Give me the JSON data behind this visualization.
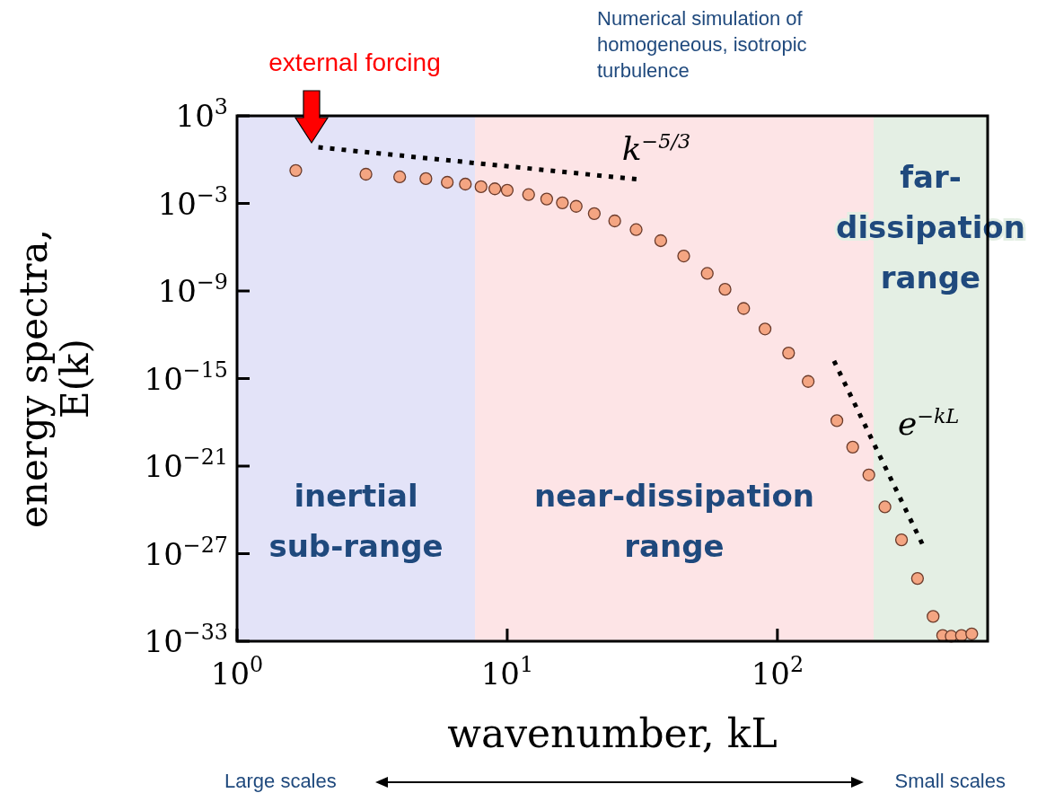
{
  "chart_data": {
    "type": "scatter",
    "xlabel": "wavenumber, kL",
    "ylabel": "energy spectra, E(k)",
    "log": "xy",
    "grid": false,
    "xlim": [
      1,
      600
    ],
    "ylim": [
      1e-33,
      1000
    ],
    "xticks": [
      {
        "value": 1,
        "label": "10$^{0}$"
      },
      {
        "value": 10,
        "label": "10$^{1}$"
      },
      {
        "value": 100,
        "label": "10$^{2}$"
      }
    ],
    "yticks": [
      {
        "value": 1e-33,
        "label": "10$^{−33}$"
      },
      {
        "value": 1e-27,
        "label": "10$^{−27}$"
      },
      {
        "value": 1e-21,
        "label": "10$^{−21}$"
      },
      {
        "value": 1e-15,
        "label": "10$^{−15}$"
      },
      {
        "value": 1e-09,
        "label": "10$^{−9}$"
      },
      {
        "value": 0.001,
        "label": "10$^{−3}$"
      },
      {
        "value": 1000,
        "label": "10$^{3}$"
      }
    ],
    "bands": [
      {
        "axis": "x",
        "from": 1,
        "to": 7.6,
        "label": "inertial sub-range",
        "color": "#e3e3f8"
      },
      {
        "axis": "x",
        "from": 7.6,
        "to": 227,
        "label": "near-dissipation range",
        "color": "#fde4e6"
      },
      {
        "axis": "x",
        "from": 227,
        "to": 600,
        "label": "far-dissipation range",
        "color": "#e4efe4"
      }
    ],
    "series": [
      {
        "color": "#f4a582",
        "marker": "circle",
        "x": [
          1.65,
          3,
          4,
          5,
          6,
          7,
          8,
          9,
          10,
          12,
          14,
          16,
          18,
          21,
          25,
          30,
          37,
          45,
          55,
          64,
          75,
          90,
          110,
          130,
          166,
          190,
          218,
          250,
          288,
          330,
          377,
          409,
          440,
          480,
          524
        ],
        "values": [
          0.18,
          0.1,
          0.066,
          0.05,
          0.028,
          0.021,
          0.014,
          0.01,
          0.008,
          0.004,
          0.002,
          0.0011,
          0.00063,
          0.0002,
          6.3e-05,
          1.6e-05,
          2.8e-06,
          2.5e-07,
          1.6e-08,
          1.3e-09,
          6.3e-11,
          2.5e-12,
          5.6e-14,
          6.3e-16,
          1.3e-18,
          2e-20,
          2.5e-22,
          1.6e-24,
          8.9e-27,
          2e-29,
          5e-32,
          2.5e-33,
          2.2e-33,
          2.5e-33,
          3.2e-33
        ]
      },
      {
        "type": "line",
        "name": "k$^{−5/3}$",
        "color": "#000000",
        "line_style": "dotted",
        "x": [
          2,
          31
        ],
        "values": [
          7,
          0.043
        ]
      },
      {
        "type": "line",
        "name": "e$^{−kL}$",
        "color": "#000000",
        "line_style": "dotted",
        "x": [
          162,
          344
        ],
        "values": [
          1.6e-14,
          4.5e-27
        ]
      }
    ],
    "annotations": [
      "external forcing",
      "Numerical simulation of homogeneous, isotropic turbulence",
      "Large scales",
      "Small scales"
    ]
  }
}
